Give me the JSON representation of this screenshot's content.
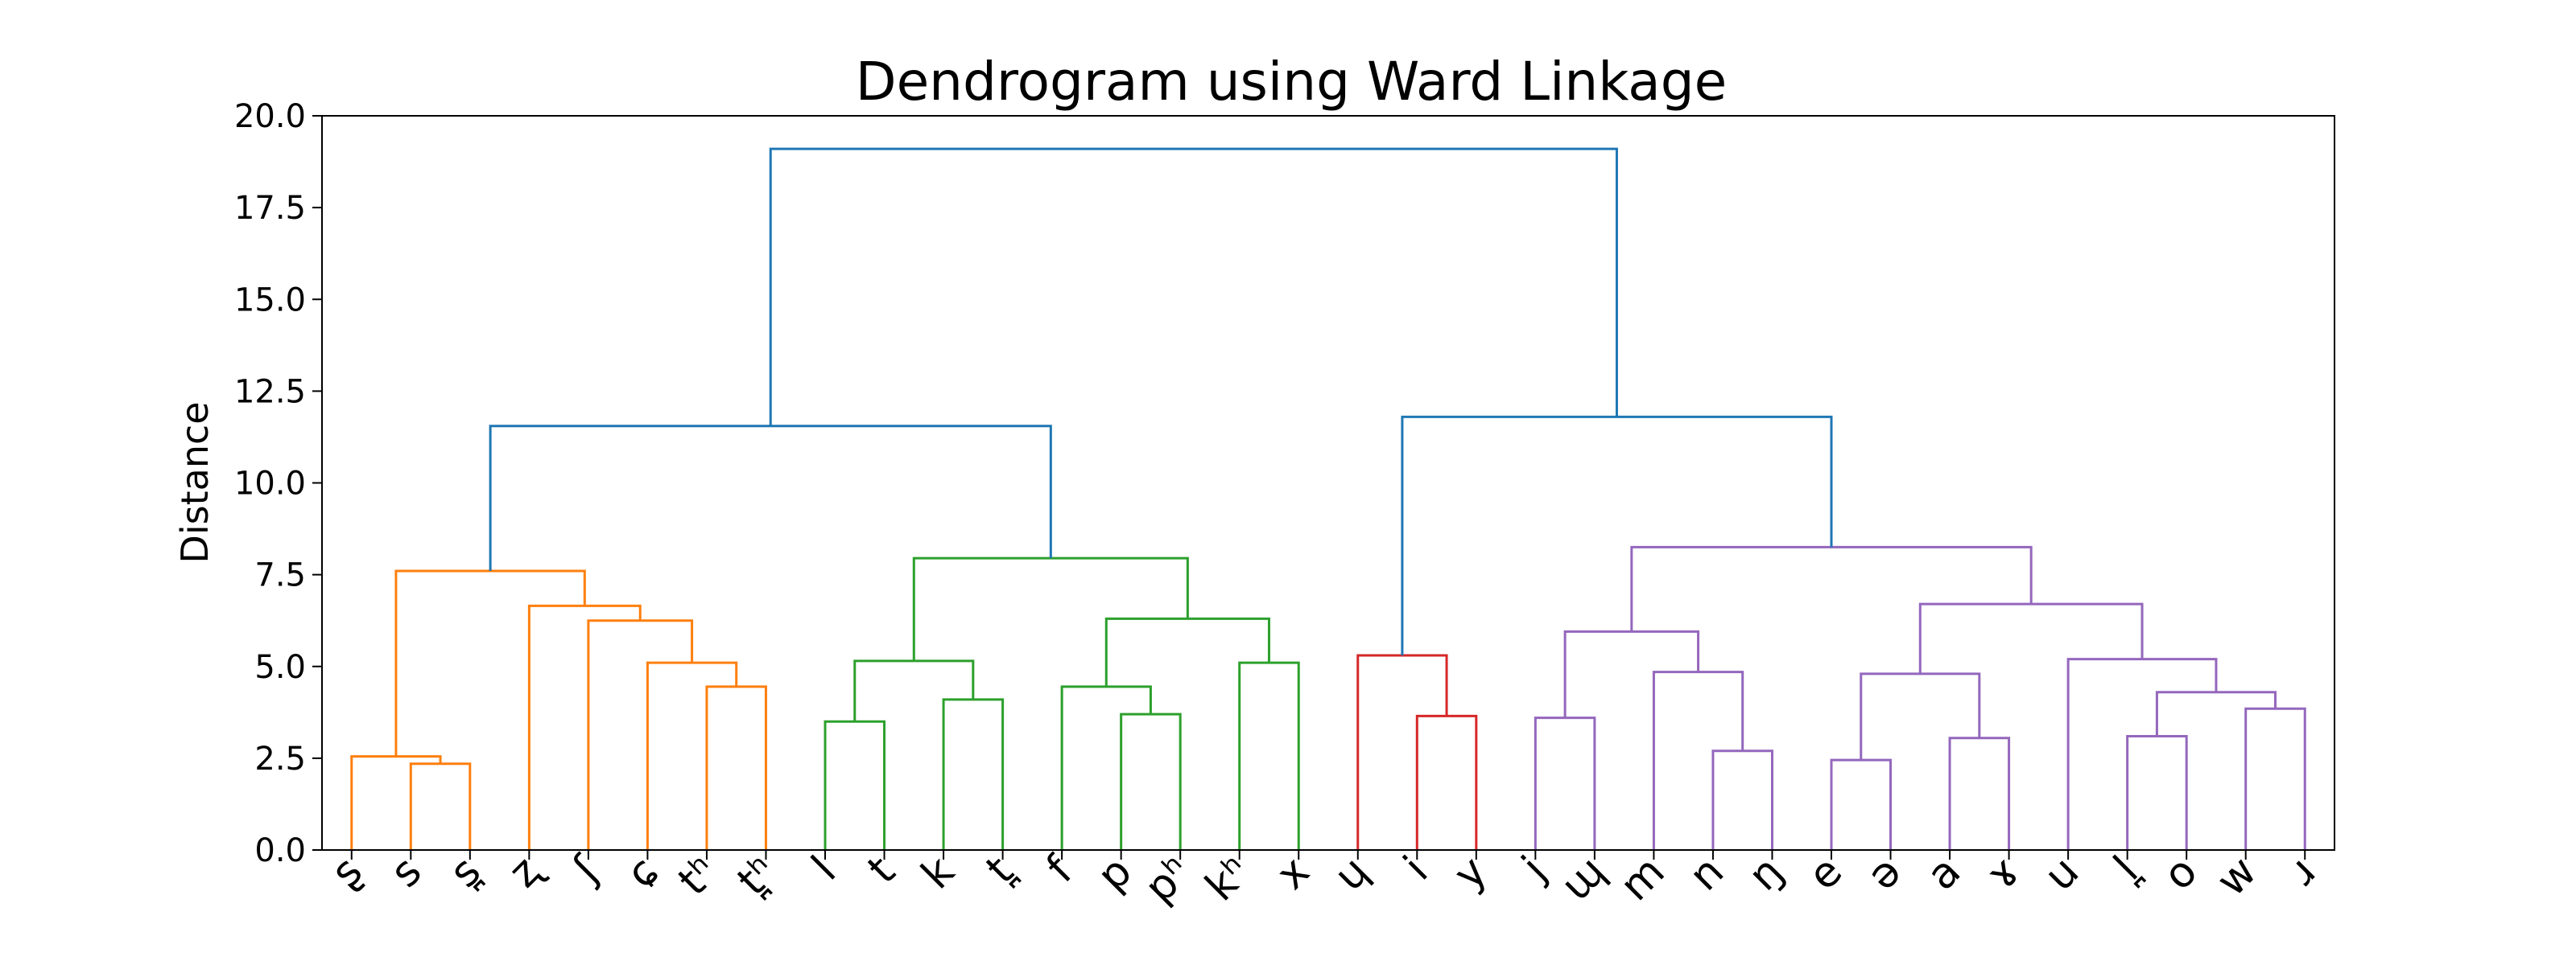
{
  "chart_data": {
    "type": "dendrogram",
    "title": "Dendrogram using Ward Linkage",
    "xlabel": "",
    "ylabel": "Distance",
    "ylim": [
      0,
      20
    ],
    "yticks": [
      "0.0",
      "2.5",
      "5.0",
      "7.5",
      "10.0",
      "12.5",
      "15.0",
      "17.5",
      "20.0"
    ],
    "grid": false,
    "leaves": [
      "ʂ",
      "s",
      "s̪",
      "ʐ",
      "ʃ",
      "ɕ",
      "tʰ",
      "t̪ʰ",
      "l",
      "t",
      "k",
      "t̪",
      "f",
      "p",
      "pʰ",
      "kʰ",
      "x",
      "ɥ",
      "i",
      "y",
      "j",
      "ɰ",
      "m",
      "n",
      "ŋ",
      "e",
      "ə",
      "a",
      "ɤ",
      "u",
      "l̪",
      "o",
      "w",
      "ɹ"
    ],
    "colors": {
      "orange": "#ff7f0e",
      "green": "#2ca02c",
      "red": "#d62728",
      "purple": "#9467bd",
      "blue": "#1f77b4"
    },
    "merges": [
      {
        "left": "leaf:1",
        "right": "leaf:2",
        "height": 2.35,
        "color": "orange"
      },
      {
        "left": "leaf:0",
        "right": "node:0",
        "height": 2.55,
        "color": "orange"
      },
      {
        "left": "leaf:6",
        "right": "leaf:7",
        "height": 4.45,
        "color": "orange"
      },
      {
        "left": "leaf:5",
        "right": "node:2",
        "height": 5.1,
        "color": "orange"
      },
      {
        "left": "leaf:4",
        "right": "node:3",
        "height": 6.25,
        "color": "orange"
      },
      {
        "left": "leaf:3",
        "right": "node:4",
        "height": 6.65,
        "color": "orange"
      },
      {
        "left": "node:1",
        "right": "node:5",
        "height": 7.6,
        "color": "orange"
      },
      {
        "left": "leaf:8",
        "right": "leaf:9",
        "height": 3.5,
        "color": "green"
      },
      {
        "left": "leaf:10",
        "right": "leaf:11",
        "height": 4.1,
        "color": "green"
      },
      {
        "left": "node:7",
        "right": "node:8",
        "height": 5.15,
        "color": "green"
      },
      {
        "left": "leaf:13",
        "right": "leaf:14",
        "height": 3.7,
        "color": "green"
      },
      {
        "left": "leaf:12",
        "right": "node:10",
        "height": 4.45,
        "color": "green"
      },
      {
        "left": "leaf:15",
        "right": "leaf:16",
        "height": 5.1,
        "color": "green"
      },
      {
        "left": "node:11",
        "right": "node:12",
        "height": 6.3,
        "color": "green"
      },
      {
        "left": "node:9",
        "right": "node:13",
        "height": 7.95,
        "color": "green"
      },
      {
        "left": "node:6",
        "right": "node:14",
        "height": 11.55,
        "color": "blue"
      },
      {
        "left": "leaf:18",
        "right": "leaf:19",
        "height": 3.65,
        "color": "red"
      },
      {
        "left": "leaf:17",
        "right": "node:16",
        "height": 5.3,
        "color": "red"
      },
      {
        "left": "leaf:20",
        "right": "leaf:21",
        "height": 3.6,
        "color": "purple"
      },
      {
        "left": "leaf:23",
        "right": "leaf:24",
        "height": 2.7,
        "color": "purple"
      },
      {
        "left": "leaf:22",
        "right": "node:19",
        "height": 4.85,
        "color": "purple"
      },
      {
        "left": "node:18",
        "right": "node:20",
        "height": 5.95,
        "color": "purple"
      },
      {
        "left": "leaf:25",
        "right": "leaf:26",
        "height": 2.45,
        "color": "purple"
      },
      {
        "left": "leaf:27",
        "right": "leaf:28",
        "height": 3.05,
        "color": "purple"
      },
      {
        "left": "node:22",
        "right": "node:23",
        "height": 4.8,
        "color": "purple"
      },
      {
        "left": "leaf:30",
        "right": "leaf:31",
        "height": 3.1,
        "color": "purple"
      },
      {
        "left": "leaf:32",
        "right": "leaf:33",
        "height": 3.85,
        "color": "purple"
      },
      {
        "left": "node:25",
        "right": "node:26",
        "height": 4.3,
        "color": "purple"
      },
      {
        "left": "leaf:29",
        "right": "node:27",
        "height": 5.2,
        "color": "purple"
      },
      {
        "left": "node:24",
        "right": "node:28",
        "height": 6.7,
        "color": "purple"
      },
      {
        "left": "node:21",
        "right": "node:29",
        "height": 8.25,
        "color": "purple"
      },
      {
        "left": "node:17",
        "right": "node:30",
        "height": 11.8,
        "color": "blue"
      },
      {
        "left": "node:15",
        "right": "node:31",
        "height": 19.1,
        "color": "blue"
      }
    ]
  }
}
